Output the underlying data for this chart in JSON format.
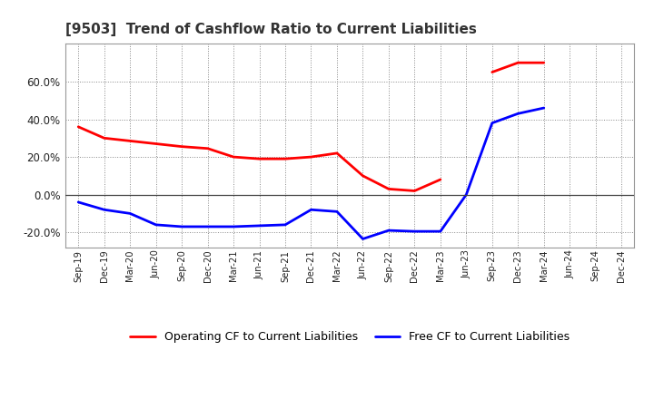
{
  "title": "[9503]  Trend of Cashflow Ratio to Current Liabilities",
  "x_labels": [
    "Sep-19",
    "Dec-19",
    "Mar-20",
    "Jun-20",
    "Sep-20",
    "Dec-20",
    "Mar-21",
    "Jun-21",
    "Sep-21",
    "Dec-21",
    "Mar-22",
    "Jun-22",
    "Sep-22",
    "Dec-22",
    "Mar-23",
    "Jun-23",
    "Sep-23",
    "Dec-23",
    "Mar-24",
    "Jun-24",
    "Sep-24",
    "Dec-24"
  ],
  "operating_cf": [
    0.36,
    0.3,
    0.285,
    0.27,
    0.255,
    0.245,
    0.2,
    0.19,
    0.19,
    0.2,
    0.22,
    0.1,
    0.03,
    0.02,
    0.08,
    null,
    0.65,
    0.7,
    0.7,
    null,
    null,
    null
  ],
  "free_cf": [
    -0.04,
    -0.08,
    -0.1,
    -0.16,
    -0.17,
    -0.17,
    -0.17,
    -0.165,
    -0.16,
    -0.08,
    -0.09,
    -0.235,
    -0.19,
    -0.195,
    -0.195,
    0.0,
    0.38,
    0.43,
    0.46,
    null,
    null,
    null
  ],
  "ylim": [
    -0.28,
    0.8
  ],
  "yticks": [
    -0.2,
    0.0,
    0.2,
    0.4,
    0.6
  ],
  "operating_color": "#ff0000",
  "free_color": "#0000ff",
  "background_color": "#ffffff",
  "plot_bg_color": "#ffffff",
  "grid_color": "#888888",
  "legend_op": "Operating CF to Current Liabilities",
  "legend_free": "Free CF to Current Liabilities",
  "title_color": "#333333"
}
